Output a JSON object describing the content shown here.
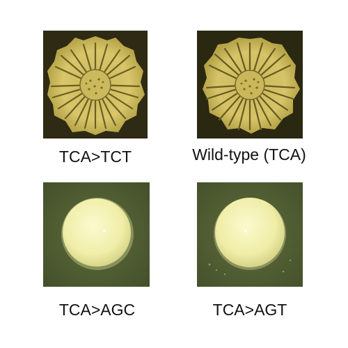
{
  "panels": [
    {
      "caption": "TCA>TCT",
      "morphology": "wrinkled-colony",
      "background_color": "#2f2a14",
      "colony_color": "#d8c468"
    },
    {
      "caption": "Wild-type (TCA)",
      "morphology": "wrinkled-colony",
      "background_color": "#2b2812",
      "colony_color": "#d6c266"
    },
    {
      "caption": "TCA>AGC",
      "morphology": "smooth-colony",
      "background_color": "#4e5a2f",
      "colony_color": "#f2f0b0"
    },
    {
      "caption": "TCA>AGT",
      "morphology": "smooth-colony",
      "background_color": "#4f5b30",
      "colony_color": "#f1efae"
    }
  ]
}
